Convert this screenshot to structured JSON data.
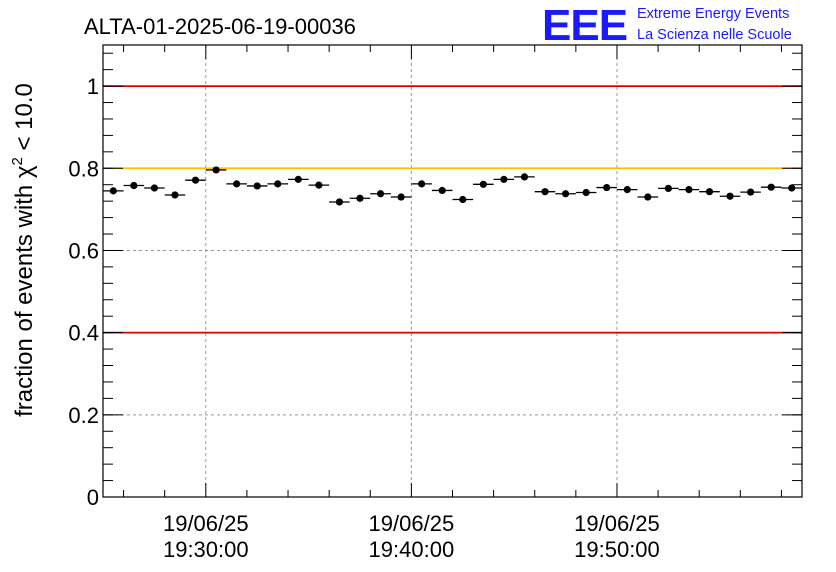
{
  "header": {
    "title": "ALTA-01-2025-06-19-00036",
    "logo_mark": "EEE",
    "logo_line1": "Extreme Energy Events",
    "logo_line2": "La Scienza nelle Scuole",
    "logo_color": "#1a1aff"
  },
  "chart_data": {
    "type": "scatter",
    "title": "ALTA-01-2025-06-19-00036",
    "ylabel_prefix": "fraction of events with ",
    "ylabel_symbol": "χ",
    "ylabel_sup": "2",
    "ylabel_suffix": " < 10.0",
    "xlabel": "",
    "ylim": [
      0,
      1.1
    ],
    "yticks": [
      "0",
      "0.2",
      "0.4",
      "0.6",
      "0.8",
      "1"
    ],
    "ytick_values": [
      0,
      0.2,
      0.4,
      0.6,
      0.8,
      1.0
    ],
    "xlim": [
      "2025-06-19 19:25:00",
      "2025-06-19 19:59:00"
    ],
    "xticks": [
      {
        "date": "19/06/25",
        "time": "19:30:00"
      },
      {
        "date": "19/06/25",
        "time": "19:40:00"
      },
      {
        "date": "19/06/25",
        "time": "19:50:00"
      }
    ],
    "grid": true,
    "reference_lines": [
      {
        "y": 1.0,
        "color": "#e00000"
      },
      {
        "y": 0.8,
        "color": "#ffbf00"
      },
      {
        "y": 0.4,
        "color": "#e00000"
      }
    ],
    "series": [
      {
        "marker_color": "#000000",
        "x": [
          "19:25:30",
          "19:26:30",
          "19:27:30",
          "19:28:30",
          "19:29:30",
          "19:30:30",
          "19:31:30",
          "19:32:30",
          "19:33:30",
          "19:34:30",
          "19:35:30",
          "19:36:30",
          "19:37:30",
          "19:38:30",
          "19:39:30",
          "19:40:30",
          "19:41:30",
          "19:42:30",
          "19:43:30",
          "19:44:30",
          "19:45:30",
          "19:46:30",
          "19:47:30",
          "19:48:30",
          "19:49:30",
          "19:50:30",
          "19:51:30",
          "19:52:30",
          "19:53:30",
          "19:54:30",
          "19:55:30",
          "19:56:30",
          "19:57:30",
          "19:58:30"
        ],
        "y": [
          0.745,
          0.758,
          0.752,
          0.735,
          0.771,
          0.796,
          0.762,
          0.757,
          0.762,
          0.773,
          0.759,
          0.718,
          0.727,
          0.738,
          0.73,
          0.762,
          0.746,
          0.724,
          0.761,
          0.773,
          0.779,
          0.743,
          0.738,
          0.741,
          0.753,
          0.748,
          0.73,
          0.751,
          0.748,
          0.743,
          0.732,
          0.742,
          0.754,
          0.752
        ],
        "yerr": 0.008
      }
    ]
  }
}
